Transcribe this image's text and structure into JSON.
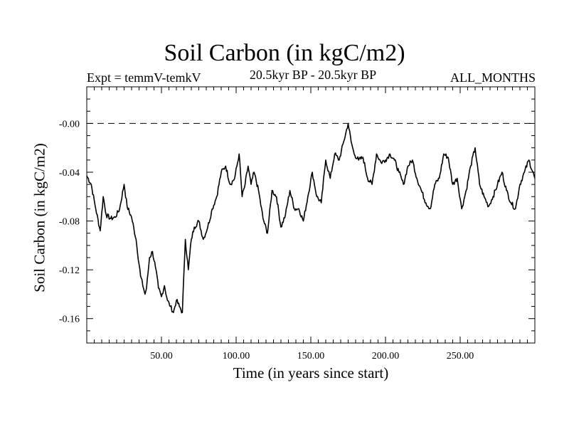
{
  "chart_data": {
    "type": "line",
    "title": "Soil Carbon (in kgC/m2)",
    "subtitle_left": "Expt = temmV-temkV",
    "subtitle_center": "20.5kyr BP - 20.5kyr BP",
    "subtitle_right": "ALL_MONTHS",
    "xlabel": "Time (in years since start)",
    "ylabel": "Soil Carbon (in kgC/m2)",
    "xlim": [
      0,
      300
    ],
    "ylim": [
      -0.18,
      0.03
    ],
    "x_ticks": [
      50,
      100,
      150,
      200,
      250
    ],
    "x_tick_labels": [
      "50.00",
      "100.00",
      "150.00",
      "200.00",
      "250.00"
    ],
    "y_ticks": [
      0.0,
      -0.04,
      -0.08,
      -0.12,
      -0.16
    ],
    "y_tick_labels": [
      "-0.00",
      "-0.04",
      "-0.08",
      "-0.12",
      "-0.16"
    ],
    "reference_line": 0.0,
    "series": [
      {
        "name": "Soil Carbon",
        "x": [
          0,
          3,
          6,
          9,
          11,
          13,
          16,
          19,
          22,
          25,
          27,
          30,
          33,
          36,
          39,
          40,
          42,
          44,
          46,
          48,
          50,
          52,
          54,
          56,
          58,
          60,
          62,
          64,
          66,
          68,
          70,
          72,
          75,
          78,
          81,
          84,
          87,
          90,
          93,
          96,
          99,
          102,
          104,
          106,
          108,
          110,
          112,
          115,
          118,
          121,
          124,
          127,
          130,
          133,
          136,
          139,
          142,
          145,
          148,
          151,
          154,
          157,
          160,
          163,
          166,
          169,
          172,
          175,
          177,
          179,
          182,
          185,
          188,
          191,
          194,
          197,
          200,
          203,
          206,
          209,
          212,
          215,
          218,
          221,
          224,
          227,
          230,
          233,
          236,
          239,
          242,
          245,
          248,
          251,
          254,
          257,
          260,
          263,
          266,
          269,
          272,
          275,
          278,
          281,
          284,
          287,
          290,
          293,
          296,
          300
        ],
        "y": [
          -0.043,
          -0.05,
          -0.07,
          -0.088,
          -0.06,
          -0.075,
          -0.078,
          -0.077,
          -0.07,
          -0.05,
          -0.068,
          -0.077,
          -0.095,
          -0.125,
          -0.14,
          -0.135,
          -0.11,
          -0.105,
          -0.118,
          -0.135,
          -0.142,
          -0.133,
          -0.145,
          -0.15,
          -0.155,
          -0.145,
          -0.15,
          -0.155,
          -0.095,
          -0.12,
          -0.095,
          -0.085,
          -0.08,
          -0.095,
          -0.085,
          -0.07,
          -0.06,
          -0.04,
          -0.035,
          -0.05,
          -0.045,
          -0.025,
          -0.06,
          -0.05,
          -0.035,
          -0.05,
          -0.04,
          -0.055,
          -0.078,
          -0.09,
          -0.055,
          -0.06,
          -0.085,
          -0.075,
          -0.055,
          -0.07,
          -0.07,
          -0.08,
          -0.06,
          -0.04,
          -0.06,
          -0.065,
          -0.03,
          -0.045,
          -0.025,
          -0.03,
          -0.015,
          -0.0,
          -0.015,
          -0.025,
          -0.03,
          -0.028,
          -0.045,
          -0.05,
          -0.025,
          -0.032,
          -0.03,
          -0.025,
          -0.03,
          -0.04,
          -0.05,
          -0.035,
          -0.03,
          -0.045,
          -0.055,
          -0.065,
          -0.07,
          -0.05,
          -0.045,
          -0.025,
          -0.028,
          -0.05,
          -0.045,
          -0.07,
          -0.055,
          -0.035,
          -0.02,
          -0.05,
          -0.06,
          -0.068,
          -0.06,
          -0.05,
          -0.04,
          -0.055,
          -0.065,
          -0.07,
          -0.05,
          -0.04,
          -0.03,
          -0.045
        ],
        "color": "#000000"
      }
    ]
  }
}
